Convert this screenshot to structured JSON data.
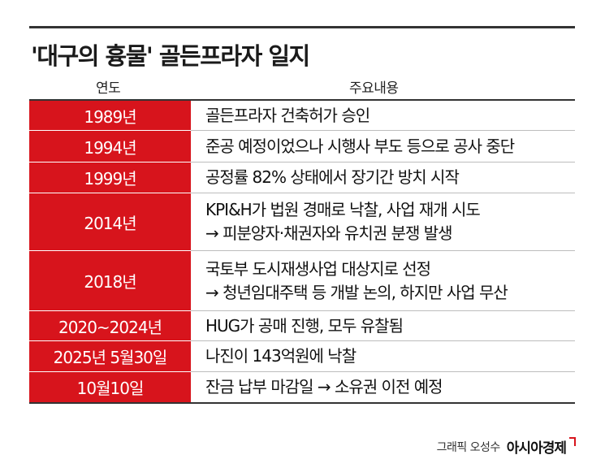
{
  "title": "'대구의 흉물' 골든프라자 일지",
  "columns": {
    "year": "연도",
    "content": "주요내용"
  },
  "rows": [
    {
      "year": "1989년",
      "lines": [
        "골든프라자 건축허가 승인"
      ]
    },
    {
      "year": "1994년",
      "lines": [
        "준공 예정이었으나 시행사 부도 등으로 공사 중단"
      ]
    },
    {
      "year": "1999년",
      "lines": [
        "공정률 82% 상태에서 장기간 방치 시작"
      ]
    },
    {
      "year": "2014년",
      "lines": [
        "KPI&H가 법원 경매로 낙찰, 사업 재개 시도",
        "→ 피분양자·채권자와 유치권 분쟁 발생"
      ]
    },
    {
      "year": "2018년",
      "lines": [
        "국토부 도시재생사업 대상지로 선정",
        "→ 청년임대주택 등 개발 논의, 하지만 사업 무산"
      ]
    },
    {
      "year": "2020~2024년",
      "lines": [
        "HUG가 공매 진행, 모두 유찰됨"
      ]
    },
    {
      "year": "2025년 5월30일",
      "lines": [
        "나진이 143억원에 낙찰"
      ]
    },
    {
      "year": "10월10일",
      "lines": [
        "잔금 납부 마감일 → 소유권 이전 예정"
      ]
    }
  ],
  "credit": {
    "graphic": "그래픽 오성수",
    "brand": "아시아경제"
  },
  "colors": {
    "accent": "#d7141c",
    "rule": "#333333"
  }
}
